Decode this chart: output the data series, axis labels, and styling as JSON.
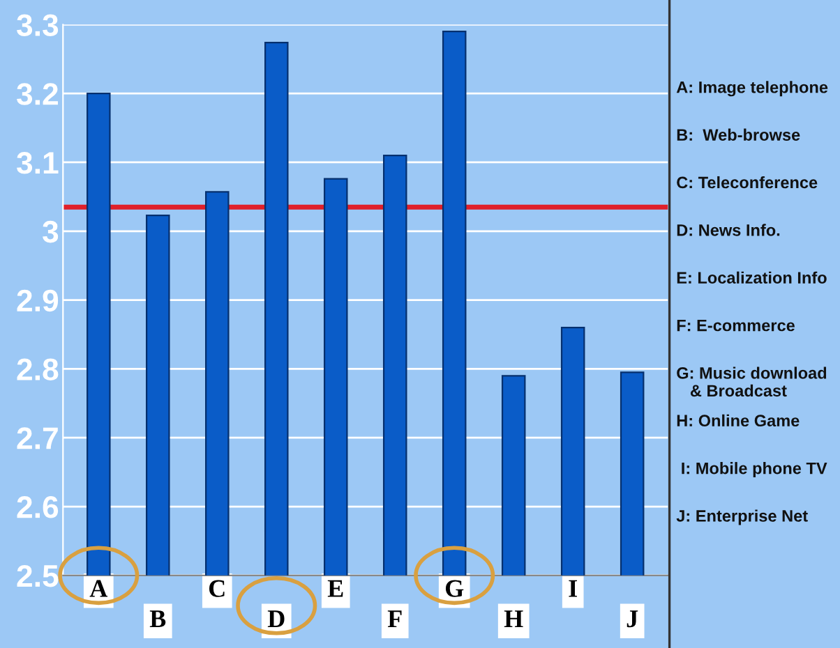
{
  "chart_data": {
    "type": "bar",
    "categories": [
      "A",
      "B",
      "C",
      "D",
      "E",
      "F",
      "G",
      "H",
      "I",
      "J"
    ],
    "values": [
      3.2,
      3.023,
      3.057,
      3.274,
      3.076,
      3.11,
      3.29,
      2.79,
      2.86,
      2.795
    ],
    "color": "#0a5cc8",
    "ylim": [
      2.5,
      3.3
    ],
    "yticks": [
      2.5,
      2.6,
      2.7,
      2.8,
      2.9,
      3,
      3.1,
      3.2,
      3.3
    ],
    "grid": "y",
    "ref_lines": [
      {
        "axis": "y",
        "value": 3.035,
        "color": "#e0202a"
      }
    ],
    "annotations": [
      "A: Image telephone",
      "B:  Web-browse",
      "C: Teleconference",
      "D: News Info.",
      "E: Localization Info",
      "F: E-commerce",
      "G: Music download\n   & Broadcast",
      "H: Online Game",
      " I: Mobile phone TV",
      "J: Enterprise Net"
    ]
  }
}
